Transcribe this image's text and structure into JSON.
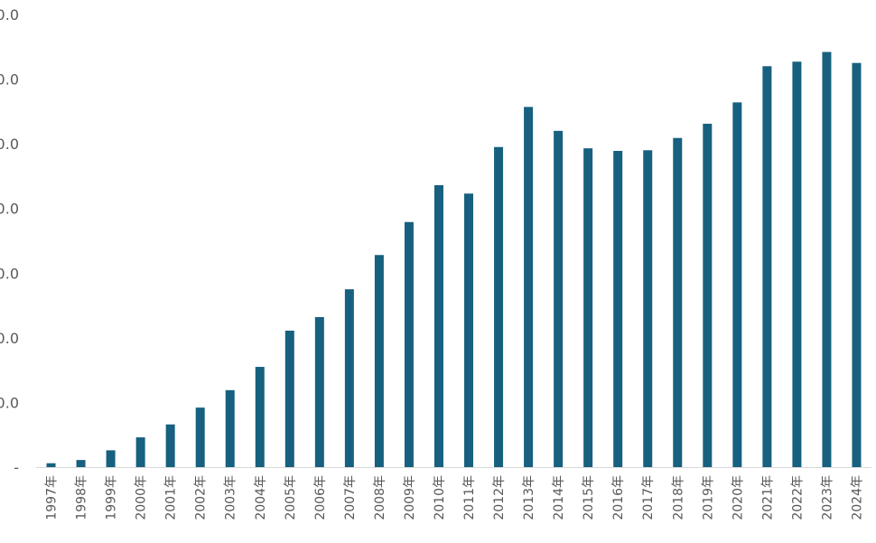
{
  "chart_data": {
    "type": "bar",
    "categories": [
      "1997年",
      "1998年",
      "1999年",
      "2000年",
      "2001年",
      "2002年",
      "2003年",
      "2004年",
      "2005年",
      "2006年",
      "2007年",
      "2008年",
      "2009年",
      "2010年",
      "2011年",
      "2012年",
      "2013年",
      "2014年",
      "2015年",
      "2016年",
      "2017年",
      "2018年",
      "2019年",
      "2020年",
      "2021年",
      "2022年",
      "2023年",
      "2024年"
    ],
    "series": [
      {
        "values": [
          0.6,
          1.1,
          2.6,
          4.6,
          6.6,
          9.2,
          11.9,
          15.5,
          21.1,
          23.2,
          27.5,
          32.8,
          37.9,
          43.6,
          42.3,
          49.5,
          55.7,
          52.0,
          49.3,
          48.9,
          49.0,
          50.9,
          53.1,
          56.4,
          62.0,
          62.7,
          64.2,
          62.5
        ]
      }
    ],
    "y_tick_labels": [
      "-",
      "0.0",
      "0.0",
      "0.0",
      "0.0",
      "0.0",
      "0.0",
      "0.0"
    ],
    "ylim": [
      0,
      70
    ],
    "bar_color": "#17607f",
    "axis_color": "#d9d9d9",
    "grid": false,
    "legend": "none",
    "title": "",
    "xlabel": "",
    "ylabel": ""
  }
}
